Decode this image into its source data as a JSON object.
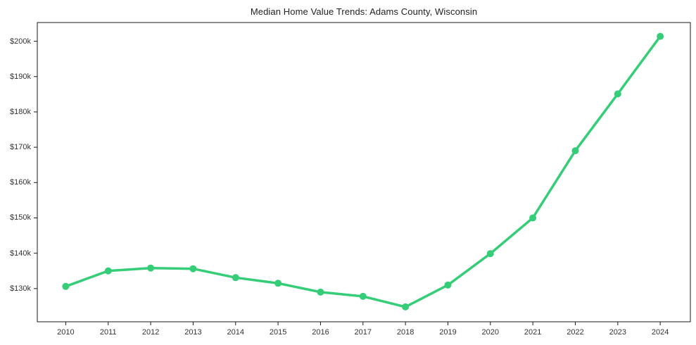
{
  "figure": {
    "background": "#ffffff",
    "title_color": "#212121",
    "tick_label_color": "#333333",
    "spine_color": "#1a1a1a"
  },
  "chart_data": {
    "type": "line",
    "title": "Median Home Value Trends: Adams County, Wisconsin",
    "xlabel": "",
    "ylabel": "",
    "grid": false,
    "legend": null,
    "series": [
      {
        "name": "Median home value",
        "color": "#35cd78",
        "marker": "circle",
        "line_width": 3.5,
        "marker_radius": 5,
        "x": [
          2010,
          2011,
          2012,
          2013,
          2014,
          2015,
          2016,
          2017,
          2018,
          2019,
          2020,
          2021,
          2022,
          2023,
          2024
        ],
        "values_thousands_usd": [
          130.6,
          135.0,
          135.8,
          135.6,
          133.1,
          131.5,
          129.0,
          127.8,
          124.8,
          131.0,
          139.9,
          150.0,
          169.0,
          185.1,
          201.4
        ]
      }
    ],
    "x_tick_values": [
      2010,
      2011,
      2012,
      2013,
      2014,
      2015,
      2016,
      2017,
      2018,
      2019,
      2020,
      2021,
      2022,
      2023,
      2024
    ],
    "x_tick_labels": [
      "2010",
      "2011",
      "2012",
      "2013",
      "2014",
      "2015",
      "2016",
      "2017",
      "2018",
      "2019",
      "2020",
      "2021",
      "2022",
      "2023",
      "2024"
    ],
    "y_tick_values": [
      130,
      140,
      150,
      160,
      170,
      180,
      190,
      200
    ],
    "y_tick_labels": [
      "$130k",
      "$140k",
      "$150k",
      "$160k",
      "$170k",
      "$180k",
      "$190k",
      "$200k"
    ],
    "xlim": [
      2009.33,
      2024.71
    ],
    "ylim_thousands": [
      120.6,
      205.3
    ]
  }
}
